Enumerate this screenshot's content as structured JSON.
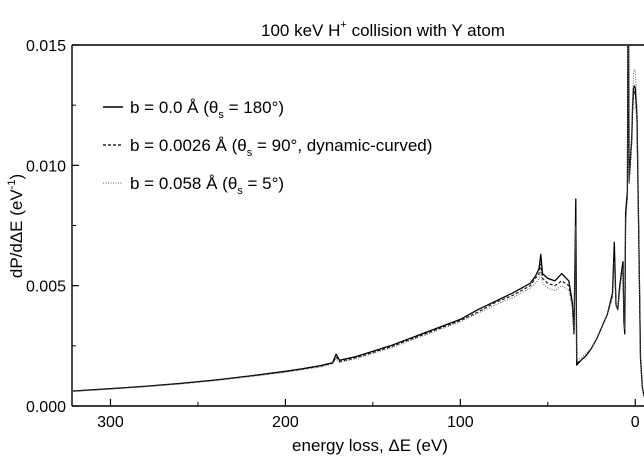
{
  "chart_data": {
    "type": "line",
    "title_main": "100 keV H",
    "title_sup": "+",
    "title_rest": " collision with Y atom",
    "xlabel": "energy loss, ΔE (eV)",
    "ylabel_main": "dP/dΔE (eV",
    "ylabel_sup": "-1",
    "ylabel_end": ")",
    "xlim": [
      322,
      -5
    ],
    "ylim": [
      0,
      0.015
    ],
    "x_ticks": [
      300,
      200,
      100,
      0
    ],
    "x_tick_labels": [
      "300",
      "200",
      "100",
      "0"
    ],
    "y_ticks": [
      0.0,
      0.005,
      0.01,
      0.015
    ],
    "y_tick_labels": [
      "0.000",
      "0.005",
      "0.010",
      "0.015"
    ],
    "grid": false,
    "legend_placement": "top-left",
    "series": [
      {
        "name": "b = 0.0 Å (θs = 180°)",
        "legend_pre": "b = 0.0 Å (θ",
        "legend_sub": "s",
        "legend_post": " = 180°)",
        "style": "solid",
        "points": [
          [
            322,
            0.00062
          ],
          [
            300,
            0.00072
          ],
          [
            280,
            0.00082
          ],
          [
            260,
            0.00094
          ],
          [
            240,
            0.00108
          ],
          [
            220,
            0.00125
          ],
          [
            200,
            0.00144
          ],
          [
            190,
            0.00155
          ],
          [
            180,
            0.00168
          ],
          [
            173,
            0.0018
          ],
          [
            171,
            0.00215
          ],
          [
            169,
            0.0019
          ],
          [
            160,
            0.00205
          ],
          [
            140,
            0.0025
          ],
          [
            120,
            0.00305
          ],
          [
            100,
            0.0036
          ],
          [
            90,
            0.004
          ],
          [
            80,
            0.00435
          ],
          [
            70,
            0.0047
          ],
          [
            65,
            0.0049
          ],
          [
            60,
            0.0051
          ],
          [
            57,
            0.0054
          ],
          [
            55,
            0.0057
          ],
          [
            54,
            0.0063
          ],
          [
            53,
            0.0055
          ],
          [
            50,
            0.0053
          ],
          [
            46,
            0.0052
          ],
          [
            42,
            0.0055
          ],
          [
            38,
            0.0052
          ],
          [
            36,
            0.0043
          ],
          [
            35,
            0.003
          ],
          [
            34,
            0.0086
          ],
          [
            33.5,
            0.0017
          ],
          [
            31,
            0.0019
          ],
          [
            28,
            0.0021
          ],
          [
            25,
            0.0024
          ],
          [
            22,
            0.0028
          ],
          [
            19,
            0.0033
          ],
          [
            16,
            0.0038
          ],
          [
            14,
            0.0044
          ],
          [
            13,
            0.0047
          ],
          [
            12,
            0.0068
          ],
          [
            11,
            0.0042
          ],
          [
            10,
            0.004
          ],
          [
            9,
            0.0049
          ],
          [
            8,
            0.0055
          ],
          [
            7,
            0.006
          ],
          [
            6.5,
            0.0035
          ],
          [
            6,
            0.003
          ],
          [
            5.5,
            0.008
          ],
          [
            5,
            0.0085
          ],
          [
            4.5,
            0.0089
          ],
          [
            4.2,
            0.015
          ],
          [
            3.8,
            0.015
          ],
          [
            3.5,
            0.0095
          ],
          [
            3,
            0.01
          ],
          [
            2,
            0.0112
          ],
          [
            1.5,
            0.0125
          ],
          [
            1,
            0.0132
          ],
          [
            0.5,
            0.0133
          ],
          [
            0,
            0.0132
          ],
          [
            -1,
            0.012
          ],
          [
            -2,
            0.007
          ],
          [
            -3,
            0.002
          ],
          [
            -4,
            0.0008
          ],
          [
            -5,
            0.0004
          ]
        ]
      },
      {
        "name": "b = 0.0026 Å (θs = 90°, dynamic-curved)",
        "legend_pre": "b = 0.0026 Å (θ",
        "legend_sub": "s",
        "legend_post": " = 90°, dynamic-curved)",
        "style": "dashed",
        "points": [
          [
            322,
            0.00062
          ],
          [
            300,
            0.00072
          ],
          [
            280,
            0.00082
          ],
          [
            260,
            0.00093
          ],
          [
            240,
            0.00107
          ],
          [
            220,
            0.00124
          ],
          [
            200,
            0.00142
          ],
          [
            180,
            0.00165
          ],
          [
            173,
            0.00178
          ],
          [
            171,
            0.00205
          ],
          [
            169,
            0.00185
          ],
          [
            160,
            0.002
          ],
          [
            140,
            0.00245
          ],
          [
            120,
            0.003
          ],
          [
            100,
            0.00355
          ],
          [
            90,
            0.0039
          ],
          [
            80,
            0.0043
          ],
          [
            70,
            0.0046
          ],
          [
            65,
            0.0048
          ],
          [
            60,
            0.005
          ],
          [
            57,
            0.0053
          ],
          [
            55,
            0.0055
          ],
          [
            54,
            0.0059
          ],
          [
            53,
            0.0053
          ],
          [
            50,
            0.0051
          ],
          [
            46,
            0.005
          ],
          [
            42,
            0.0052
          ],
          [
            38,
            0.005
          ],
          [
            36,
            0.0042
          ],
          [
            35,
            0.003
          ],
          [
            34,
            0.008
          ],
          [
            33.5,
            0.0018
          ],
          [
            31,
            0.0019
          ],
          [
            28,
            0.0021
          ],
          [
            25,
            0.0024
          ],
          [
            22,
            0.0028
          ],
          [
            19,
            0.0033
          ],
          [
            16,
            0.0038
          ],
          [
            14,
            0.0043
          ],
          [
            13,
            0.0046
          ],
          [
            12,
            0.0064
          ],
          [
            11,
            0.0042
          ],
          [
            10,
            0.004
          ],
          [
            9,
            0.0048
          ],
          [
            8,
            0.0054
          ],
          [
            7,
            0.0058
          ],
          [
            6.5,
            0.0036
          ],
          [
            6,
            0.0031
          ],
          [
            5.5,
            0.0078
          ],
          [
            5,
            0.0083
          ],
          [
            4.5,
            0.0087
          ],
          [
            4.2,
            0.015
          ],
          [
            3.8,
            0.015
          ],
          [
            3.5,
            0.0093
          ],
          [
            3,
            0.0098
          ],
          [
            2,
            0.011
          ],
          [
            1.5,
            0.0122
          ],
          [
            1,
            0.0129
          ],
          [
            0.5,
            0.0131
          ],
          [
            0,
            0.013
          ],
          [
            -1,
            0.0118
          ],
          [
            -2,
            0.0068
          ],
          [
            -3,
            0.002
          ],
          [
            -4,
            0.0008
          ],
          [
            -5,
            0.0004
          ]
        ]
      },
      {
        "name": "b = 0.058 Å (θs = 5°)",
        "legend_pre": "b = 0.058 Å (θ",
        "legend_sub": "s",
        "legend_post": " = 5°)",
        "style": "dotted",
        "points": [
          [
            322,
            0.0006
          ],
          [
            300,
            0.0007
          ],
          [
            280,
            0.0008
          ],
          [
            260,
            0.00091
          ],
          [
            240,
            0.00105
          ],
          [
            220,
            0.00122
          ],
          [
            200,
            0.0014
          ],
          [
            180,
            0.00162
          ],
          [
            173,
            0.00175
          ],
          [
            171,
            0.00195
          ],
          [
            169,
            0.0018
          ],
          [
            160,
            0.00196
          ],
          [
            140,
            0.0024
          ],
          [
            120,
            0.00295
          ],
          [
            100,
            0.0035
          ],
          [
            90,
            0.00385
          ],
          [
            80,
            0.0042
          ],
          [
            70,
            0.0045
          ],
          [
            65,
            0.0047
          ],
          [
            60,
            0.0049
          ],
          [
            57,
            0.0051
          ],
          [
            55,
            0.0053
          ],
          [
            54,
            0.0056
          ],
          [
            53,
            0.0051
          ],
          [
            50,
            0.0049
          ],
          [
            46,
            0.0048
          ],
          [
            42,
            0.005
          ],
          [
            38,
            0.0048
          ],
          [
            36,
            0.0041
          ],
          [
            35,
            0.003
          ],
          [
            34,
            0.0075
          ],
          [
            33.5,
            0.0019
          ],
          [
            31,
            0.002
          ],
          [
            28,
            0.0022
          ],
          [
            25,
            0.0024
          ],
          [
            22,
            0.0028
          ],
          [
            19,
            0.0033
          ],
          [
            16,
            0.0038
          ],
          [
            14,
            0.0043
          ],
          [
            13,
            0.0045
          ],
          [
            12,
            0.006
          ],
          [
            11,
            0.0042
          ],
          [
            10,
            0.004
          ],
          [
            9,
            0.0047
          ],
          [
            8,
            0.0053
          ],
          [
            7,
            0.0057
          ],
          [
            6.5,
            0.0037
          ],
          [
            6,
            0.0032
          ],
          [
            5.5,
            0.0076
          ],
          [
            5,
            0.0081
          ],
          [
            4.5,
            0.0086
          ],
          [
            4.2,
            0.015
          ],
          [
            3.8,
            0.015
          ],
          [
            3.5,
            0.0092
          ],
          [
            3,
            0.0098
          ],
          [
            2,
            0.0112
          ],
          [
            1.5,
            0.0128
          ],
          [
            1,
            0.0138
          ],
          [
            0.5,
            0.014
          ],
          [
            0,
            0.0139
          ],
          [
            -1,
            0.0125
          ],
          [
            -2,
            0.0072
          ],
          [
            -3,
            0.0021
          ],
          [
            -4,
            0.0008
          ],
          [
            -5,
            0.0004
          ]
        ]
      }
    ]
  }
}
